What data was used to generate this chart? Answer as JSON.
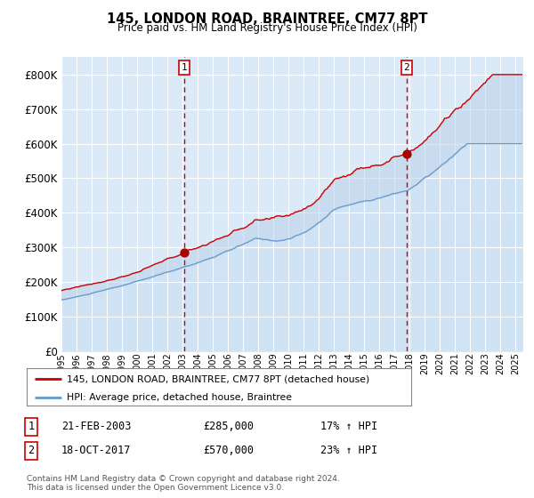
{
  "title": "145, LONDON ROAD, BRAINTREE, CM77 8PT",
  "subtitle": "Price paid vs. HM Land Registry's House Price Index (HPI)",
  "bg_color": "#dce9f7",
  "outer_bg_color": "#f0f4fa",
  "red_line_color": "#cc0000",
  "blue_line_color": "#6699cc",
  "marker_color": "#aa0000",
  "dashed_line_color": "#cc0000",
  "ylim": [
    0,
    850000
  ],
  "yticks": [
    0,
    100000,
    200000,
    300000,
    400000,
    500000,
    600000,
    700000,
    800000
  ],
  "ytick_labels": [
    "£0",
    "£100K",
    "£200K",
    "£300K",
    "£400K",
    "£500K",
    "£600K",
    "£700K",
    "£800K"
  ],
  "year_start": 1995,
  "year_end": 2025,
  "purchase1_year": 2003.13,
  "purchase1_price": 285000,
  "purchase1_label": "1",
  "purchase1_date": "21-FEB-2003",
  "purchase1_hpi_pct": "17% ↑ HPI",
  "purchase2_year": 2017.79,
  "purchase2_price": 570000,
  "purchase2_label": "2",
  "purchase2_date": "18-OCT-2017",
  "purchase2_hpi_pct": "23% ↑ HPI",
  "legend_line1": "145, LONDON ROAD, BRAINTREE, CM77 8PT (detached house)",
  "legend_line2": "HPI: Average price, detached house, Braintree",
  "footnote": "Contains HM Land Registry data © Crown copyright and database right 2024.\nThis data is licensed under the Open Government Licence v3.0."
}
